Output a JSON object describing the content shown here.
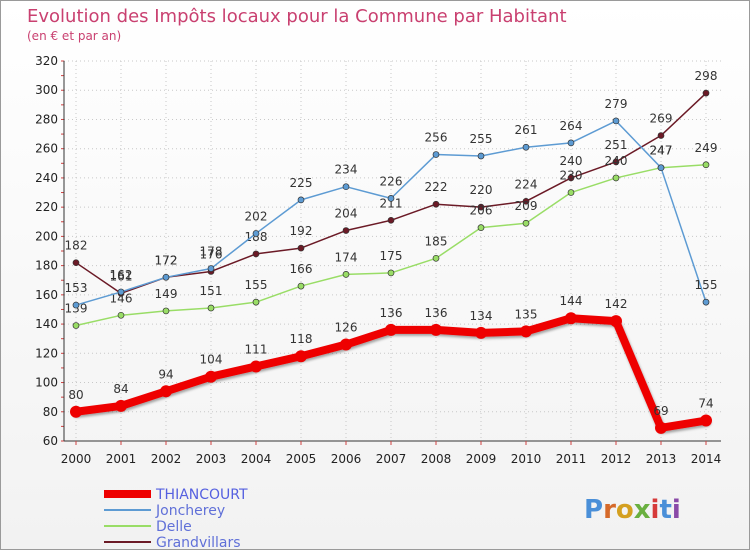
{
  "chart_data": {
    "type": "line",
    "title": "Evolution des Impôts locaux pour la Commune par Habitant",
    "subtitle": "(en € et par an)",
    "xlabel": "",
    "ylabel": "",
    "x": [
      "2000",
      "2001",
      "2002",
      "2003",
      "2004",
      "2005",
      "2006",
      "2007",
      "2008",
      "2009",
      "2010",
      "2011",
      "2012",
      "2013",
      "2014"
    ],
    "ylim": [
      60,
      320
    ],
    "yticks": [
      60,
      80,
      100,
      120,
      140,
      160,
      180,
      200,
      220,
      240,
      260,
      280,
      300,
      320
    ],
    "series": [
      {
        "name": "Grandvillars",
        "color": "#6b1a26",
        "values": [
          182,
          161,
          172,
          176,
          188,
          192,
          204,
          211,
          222,
          220,
          224,
          240,
          251,
          269,
          298
        ]
      },
      {
        "name": "Delle",
        "color": "#99dd66",
        "values": [
          139,
          146,
          149,
          151,
          155,
          166,
          174,
          175,
          185,
          206,
          209,
          230,
          240,
          247,
          249
        ]
      },
      {
        "name": "Joncherey",
        "color": "#5d9bd3",
        "values": [
          153,
          162,
          172,
          178,
          202,
          225,
          234,
          226,
          256,
          255,
          261,
          264,
          279,
          247,
          155
        ]
      },
      {
        "name": "THIANCOURT",
        "color": "#ee0000",
        "values": [
          80,
          84,
          94,
          104,
          111,
          118,
          126,
          136,
          136,
          134,
          135,
          144,
          142,
          69,
          74
        ]
      }
    ],
    "legend": [
      "THIANCOURT",
      "Joncherey",
      "Delle",
      "Grandvillars"
    ],
    "logo": "Proxiti"
  }
}
